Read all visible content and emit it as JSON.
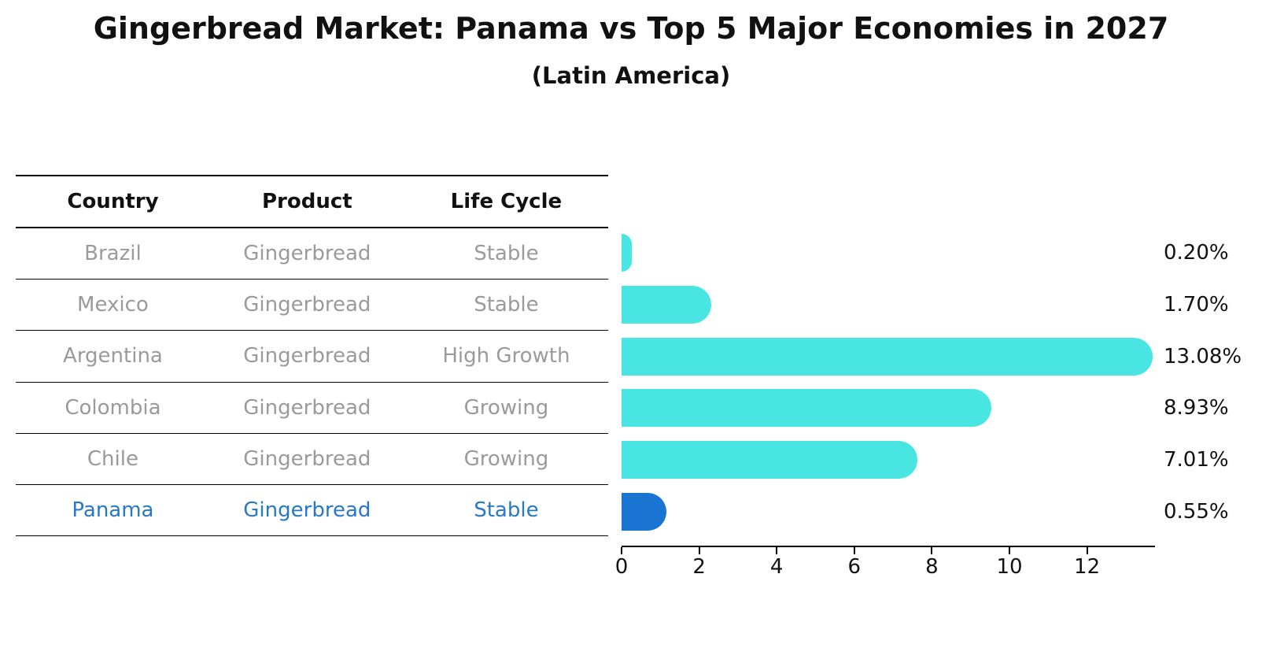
{
  "header": {
    "title": "Gingerbread Market: Panama vs Top 5 Major Economies in 2027",
    "subtitle": "(Latin America)"
  },
  "table": {
    "columns": [
      {
        "key": "country",
        "label": "Country"
      },
      {
        "key": "product",
        "label": "Product"
      },
      {
        "key": "life_cycle",
        "label": "Life Cycle"
      }
    ],
    "rows": [
      {
        "country": "Brazil",
        "product": "Gingerbread",
        "life_cycle": "Stable",
        "highlighted": false
      },
      {
        "country": "Mexico",
        "product": "Gingerbread",
        "life_cycle": "Stable",
        "highlighted": false
      },
      {
        "country": "Argentina",
        "product": "Gingerbread",
        "life_cycle": "High Growth",
        "highlighted": false
      },
      {
        "country": "Colombia",
        "product": "Gingerbread",
        "life_cycle": "Growing",
        "highlighted": false
      },
      {
        "country": "Chile",
        "product": "Gingerbread",
        "life_cycle": "Growing",
        "highlighted": false
      },
      {
        "country": "Panama",
        "product": "Gingerbread",
        "life_cycle": "Stable",
        "highlighted": true
      }
    ]
  },
  "chart_data": {
    "type": "bar",
    "orientation": "horizontal",
    "title": "Gingerbread Market: Panama vs Top 5 Major Economies in 2027",
    "subtitle": "(Latin America)",
    "categories": [
      "Brazil",
      "Mexico",
      "Argentina",
      "Colombia",
      "Chile",
      "Panama"
    ],
    "values": [
      0.2,
      1.7,
      13.08,
      8.93,
      7.01,
      0.55
    ],
    "value_labels": [
      "0.20%",
      "1.70%",
      "13.08%",
      "8.93%",
      "7.01%",
      "0.55%"
    ],
    "highlight_index": 5,
    "x_ticks": [
      0,
      2,
      4,
      6,
      8,
      10,
      12
    ],
    "xlim": [
      0,
      13.75
    ],
    "xlabel": "",
    "ylabel": "",
    "grid": false,
    "legend": "none",
    "bar_color": "#48e5e2",
    "highlight_bar_color": "#1a75d2"
  },
  "colors": {
    "title_text": "#111111",
    "table_text_muted": "#9a9a9a",
    "highlight_text": "#2878c8",
    "axis": "#000000",
    "background": "#ffffff"
  }
}
